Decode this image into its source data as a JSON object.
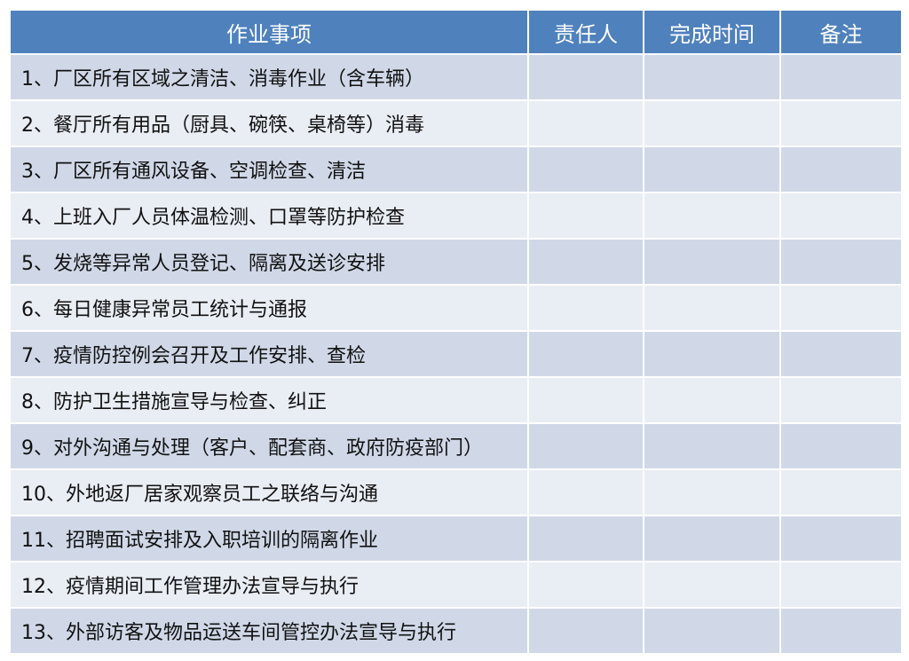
{
  "table": {
    "header": [
      "作业事项",
      "责任人",
      "完成时间",
      "备注"
    ],
    "rows": [
      "1、厂区所有区域之清洁、消毒作业（含车辆）",
      "2、餐厅所有用品（厨具、碗筷、桌椅等）消毒",
      "3、厂区所有通风设备、空调检查、清洁",
      "4、上班入厂人员体温检测、口罩等防护检查",
      "5、发烧等异常人员登记、隔离及送诊安排",
      "6、每日健康异常员工统计与通报",
      "7、疫情防控例会召开及工作安排、查检",
      "8、防护卫生措施宣导与检查、纠正",
      "9、对外沟通与处理（客户、配套商、政府防疫部门）",
      "10、外地返厂居家观察员工之联络与沟通",
      "11、招聘面试安排及入职培训的隔离作业",
      "12、疫情期间工作管理办法宣导与执行",
      "13、外部访客及物品运送车间管控办法宣导与执行"
    ]
  }
}
